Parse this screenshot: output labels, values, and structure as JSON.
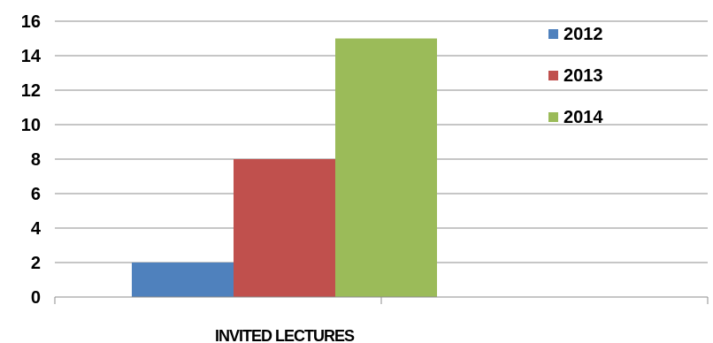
{
  "chart_data": {
    "type": "bar",
    "categories": [
      "INVITED LECTURES"
    ],
    "series": [
      {
        "name": "2012",
        "values": [
          2
        ],
        "color": "#4F81BD"
      },
      {
        "name": "2013",
        "values": [
          8
        ],
        "color": "#C0504D"
      },
      {
        "name": "2014",
        "values": [
          15
        ],
        "color": "#9BBB59"
      }
    ],
    "ylim": [
      0,
      16
    ],
    "yticks": [
      "0",
      "2",
      "4",
      "6",
      "8",
      "10",
      "12",
      "14",
      "16"
    ],
    "grid": true,
    "legend_position": "top-right"
  }
}
